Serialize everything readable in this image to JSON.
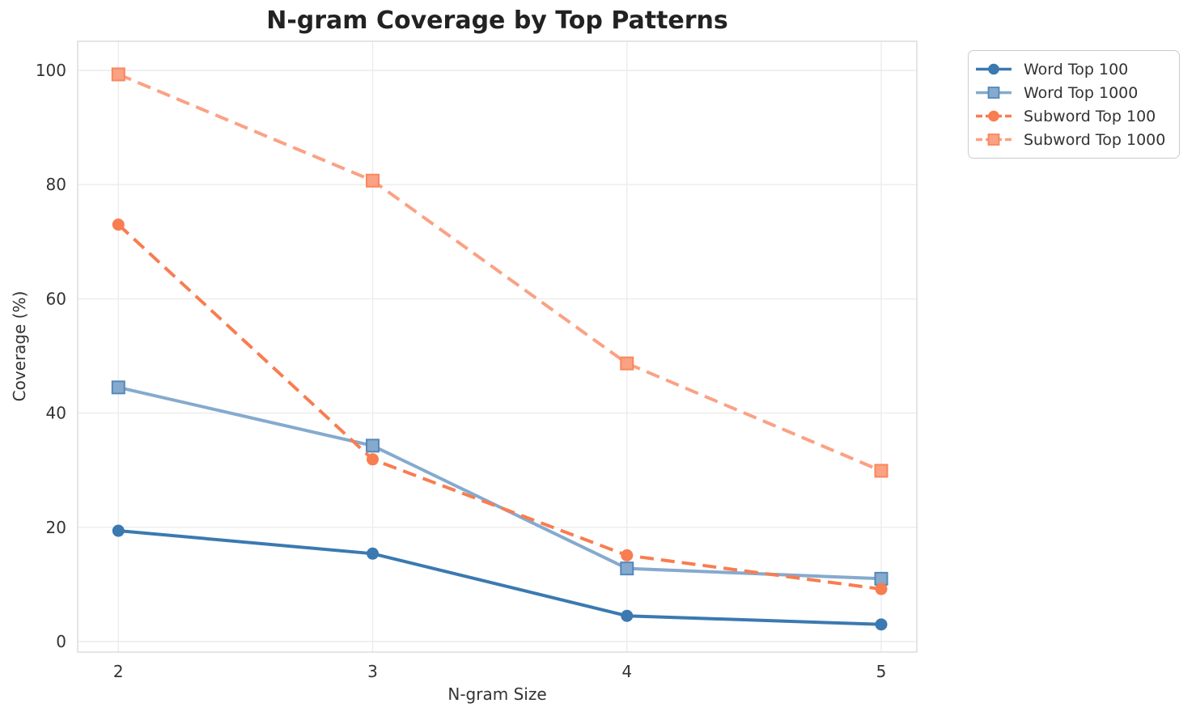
{
  "title": "N-gram Coverage by Top Patterns",
  "chart_data": {
    "type": "line",
    "title": "N-gram Coverage by Top Patterns",
    "xlabel": "N-gram Size",
    "ylabel": "Coverage (%)",
    "x": [
      2,
      3,
      4,
      5
    ],
    "xtick_labels": [
      "2",
      "3",
      "4",
      "5"
    ],
    "ytick_values": [
      0,
      20,
      40,
      60,
      80,
      100
    ],
    "ytick_labels": [
      "0",
      "20",
      "40",
      "60",
      "80",
      "100"
    ],
    "xlim": [
      1.84,
      5.14
    ],
    "ylim": [
      -1.84,
      105.1
    ],
    "grid": true,
    "legend_position": "upper right outside",
    "series": [
      {
        "name": "Word Top 100",
        "values": [
          19.4,
          15.4,
          4.5,
          3.0
        ],
        "color": "#3b79b1",
        "marker": "circle",
        "marker_edge": "#3b79b1",
        "line_style": "solid"
      },
      {
        "name": "Word Top 1000",
        "values": [
          44.5,
          34.3,
          12.8,
          11.0
        ],
        "color": "#85aace",
        "marker": "square",
        "marker_edge": "#5588ba",
        "line_style": "solid"
      },
      {
        "name": "Subword Top 100",
        "values": [
          73.0,
          31.9,
          15.1,
          9.2
        ],
        "color": "#f87d50",
        "marker": "circle",
        "marker_edge": "#f87d50",
        "line_style": "dashed"
      },
      {
        "name": "Subword Top 1000",
        "values": [
          99.3,
          80.7,
          48.7,
          29.9
        ],
        "color": "#fba184",
        "marker": "square",
        "marker_edge": "#f8875c",
        "line_style": "dashed"
      }
    ]
  },
  "colors": {
    "background": "#ffffff",
    "grid": "#ececec",
    "frame": "#dadada",
    "tick_label": "#333333",
    "title_color": "#222222",
    "legend_border": "#cccccc"
  }
}
